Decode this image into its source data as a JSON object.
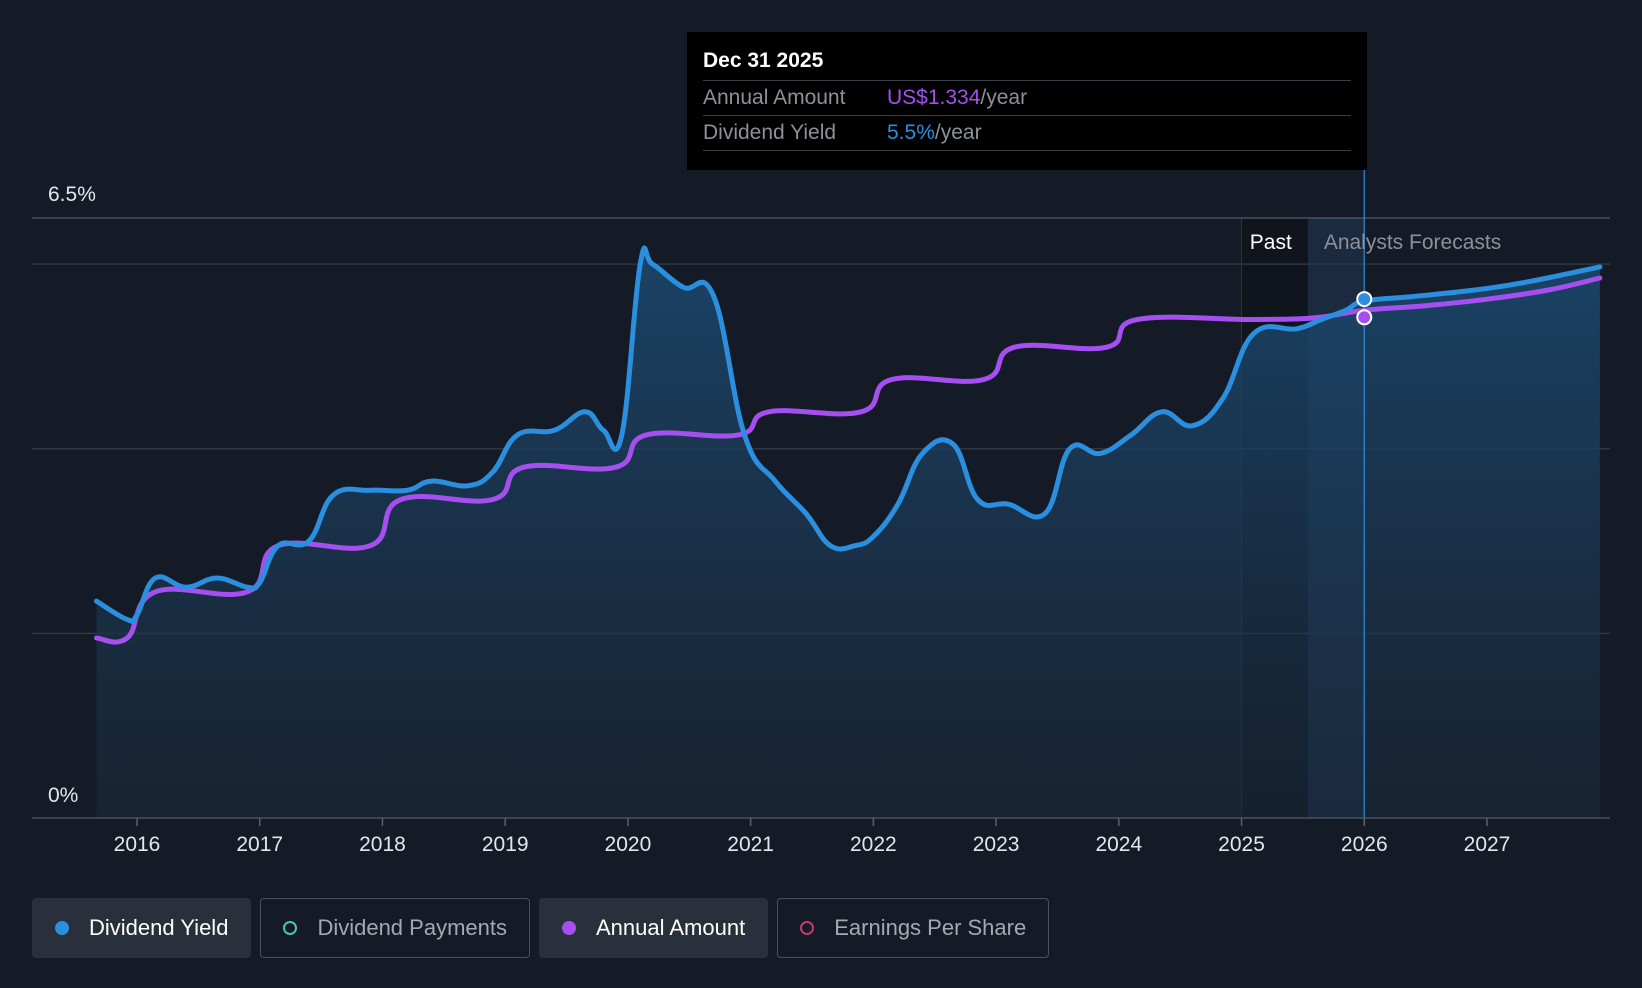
{
  "colors": {
    "background": "#151b26",
    "yield": "#2b8fe0",
    "annual": "#a64ff0",
    "payments": "#4fc1b5",
    "eps": "#c23b6e",
    "grid": "#39404b"
  },
  "tooltip": {
    "date": "Dec 31 2025",
    "annual_label": "Annual Amount",
    "annual_value": "US$1.334",
    "annual_unit": "/year",
    "yield_label": "Dividend Yield",
    "yield_value": "5.5%",
    "yield_unit": "/year"
  },
  "regions": {
    "past": "Past",
    "forecast": "Analysts Forecasts"
  },
  "legend": [
    {
      "label": "Dividend Yield",
      "color": "#2b8fe0",
      "filled": true,
      "active": true
    },
    {
      "label": "Dividend Payments",
      "color": "#4fc1b5",
      "filled": false,
      "active": false
    },
    {
      "label": "Annual Amount",
      "color": "#a64ff0",
      "filled": true,
      "active": true
    },
    {
      "label": "Earnings Per Share",
      "color": "#c23b6e",
      "filled": false,
      "active": false
    }
  ],
  "chart_data": {
    "type": "line",
    "xlim": [
      2015.17,
      2027.92
    ],
    "ylim": [
      0,
      6.5
    ],
    "y_tick_labels": [
      {
        "value": 6.5,
        "label": "6.5%"
      },
      {
        "value": 0,
        "label": "0%"
      }
    ],
    "gridlines": [
      6.0,
      4.0,
      2.0
    ],
    "x_ticks": [
      2016,
      2017,
      2018,
      2019,
      2020,
      2021,
      2022,
      2023,
      2024,
      2025,
      2026,
      2027
    ],
    "x_tick_labels": [
      "2016",
      "2017",
      "2018",
      "2019",
      "2020",
      "2021",
      "2022",
      "2023",
      "2024",
      "2025",
      "2026",
      "2027"
    ],
    "past_region_start": 2025.0,
    "forecast_start": 2025.54,
    "highlight_x": 2026.0,
    "series": [
      {
        "name": "Dividend Yield",
        "color": "#2b8fe0",
        "points": [
          [
            2015.67,
            2.35
          ],
          [
            2015.92,
            2.15
          ],
          [
            2016.0,
            2.2
          ],
          [
            2016.15,
            2.6
          ],
          [
            2016.4,
            2.5
          ],
          [
            2016.65,
            2.6
          ],
          [
            2016.9,
            2.5
          ],
          [
            2017.0,
            2.55
          ],
          [
            2017.15,
            2.95
          ],
          [
            2017.4,
            3.0
          ],
          [
            2017.6,
            3.5
          ],
          [
            2017.9,
            3.55
          ],
          [
            2018.2,
            3.55
          ],
          [
            2018.4,
            3.65
          ],
          [
            2018.7,
            3.6
          ],
          [
            2018.9,
            3.75
          ],
          [
            2019.1,
            4.15
          ],
          [
            2019.4,
            4.2
          ],
          [
            2019.65,
            4.4
          ],
          [
            2019.8,
            4.2
          ],
          [
            2019.95,
            4.15
          ],
          [
            2020.1,
            6.0
          ],
          [
            2020.2,
            6.0
          ],
          [
            2020.45,
            5.75
          ],
          [
            2020.7,
            5.65
          ],
          [
            2020.95,
            4.15
          ],
          [
            2021.2,
            3.65
          ],
          [
            2021.45,
            3.3
          ],
          [
            2021.65,
            2.95
          ],
          [
            2021.85,
            2.95
          ],
          [
            2022.0,
            3.05
          ],
          [
            2022.2,
            3.4
          ],
          [
            2022.4,
            3.95
          ],
          [
            2022.65,
            4.05
          ],
          [
            2022.85,
            3.45
          ],
          [
            2023.1,
            3.4
          ],
          [
            2023.4,
            3.3
          ],
          [
            2023.6,
            4.0
          ],
          [
            2023.85,
            3.95
          ],
          [
            2024.1,
            4.15
          ],
          [
            2024.35,
            4.4
          ],
          [
            2024.6,
            4.25
          ],
          [
            2024.85,
            4.55
          ],
          [
            2025.1,
            5.25
          ],
          [
            2025.45,
            5.3
          ],
          [
            2025.65,
            5.4
          ],
          [
            2025.85,
            5.5
          ],
          [
            2026.0,
            5.6
          ],
          [
            2026.4,
            5.65
          ],
          [
            2026.9,
            5.72
          ],
          [
            2027.3,
            5.8
          ],
          [
            2027.92,
            5.97
          ]
        ]
      },
      {
        "name": "Annual Amount",
        "color": "#a64ff0",
        "points": [
          [
            2015.67,
            1.95
          ],
          [
            2015.92,
            1.95
          ],
          [
            2016.15,
            2.45
          ],
          [
            2016.9,
            2.45
          ],
          [
            2017.15,
            2.95
          ],
          [
            2017.9,
            2.95
          ],
          [
            2018.15,
            3.45
          ],
          [
            2018.9,
            3.45
          ],
          [
            2019.15,
            3.8
          ],
          [
            2019.9,
            3.8
          ],
          [
            2020.15,
            4.15
          ],
          [
            2020.9,
            4.15
          ],
          [
            2021.15,
            4.4
          ],
          [
            2021.9,
            4.4
          ],
          [
            2022.15,
            4.75
          ],
          [
            2022.9,
            4.75
          ],
          [
            2023.15,
            5.1
          ],
          [
            2023.9,
            5.1
          ],
          [
            2024.15,
            5.4
          ],
          [
            2025.1,
            5.4
          ],
          [
            2025.6,
            5.42
          ],
          [
            2026.0,
            5.5
          ],
          [
            2026.5,
            5.55
          ],
          [
            2027.0,
            5.62
          ],
          [
            2027.5,
            5.72
          ],
          [
            2027.92,
            5.85
          ]
        ]
      }
    ]
  }
}
